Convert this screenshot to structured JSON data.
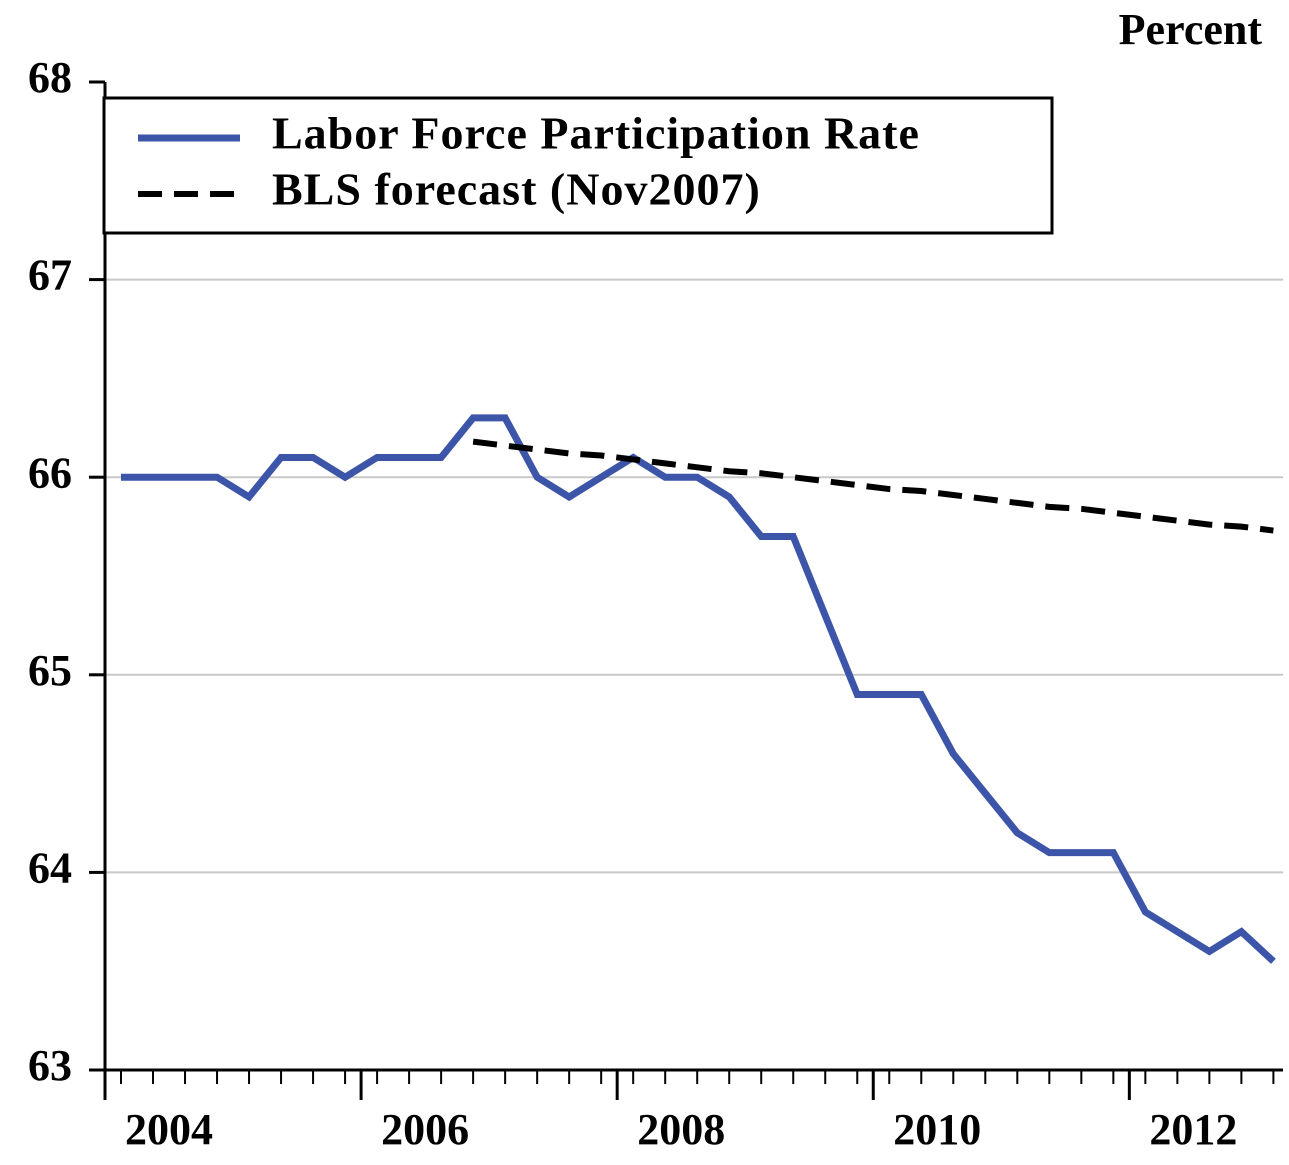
{
  "chart_data": {
    "type": "line",
    "y_axis_label": "Percent",
    "x": [
      2004.125,
      2004.375,
      2004.625,
      2004.875,
      2005.125,
      2005.375,
      2005.625,
      2005.875,
      2006.125,
      2006.375,
      2006.625,
      2006.875,
      2007.125,
      2007.375,
      2007.625,
      2007.875,
      2008.125,
      2008.375,
      2008.625,
      2008.875,
      2009.125,
      2009.375,
      2009.625,
      2009.875,
      2010.125,
      2010.375,
      2010.625,
      2010.875,
      2011.125,
      2011.375,
      2011.625,
      2011.875,
      2012.125,
      2012.375,
      2012.625,
      2012.875,
      2013.125
    ],
    "series": [
      {
        "name": "Labor Force Participation Rate",
        "color": "#3c55a8",
        "dash": false,
        "values": [
          66.0,
          66.0,
          66.0,
          66.0,
          65.9,
          66.1,
          66.1,
          66.0,
          66.1,
          66.1,
          66.1,
          66.3,
          66.3,
          66.0,
          65.9,
          66.0,
          66.1,
          66.0,
          66.0,
          65.9,
          65.7,
          65.7,
          65.3,
          64.9,
          64.9,
          64.9,
          64.6,
          64.4,
          64.2,
          64.1,
          64.1,
          64.1,
          63.8,
          63.7,
          63.6,
          63.7,
          63.55
        ]
      },
      {
        "name": "BLS forecast (Nov2007)",
        "color": "#000000",
        "dash": true,
        "values": [
          null,
          null,
          null,
          null,
          null,
          null,
          null,
          null,
          null,
          null,
          null,
          66.18,
          66.16,
          66.14,
          66.12,
          66.11,
          66.09,
          66.07,
          66.05,
          66.03,
          66.02,
          66.0,
          65.98,
          65.96,
          65.94,
          65.93,
          65.91,
          65.89,
          65.87,
          65.85,
          65.84,
          65.82,
          65.8,
          65.78,
          65.76,
          65.75,
          65.73
        ]
      }
    ],
    "xlim": [
      2004,
      2013.2
    ],
    "xticks": [
      2004,
      2006,
      2008,
      2010,
      2012
    ],
    "ylim": [
      63,
      68
    ],
    "yticks": [
      63,
      64,
      65,
      66,
      67,
      68
    ],
    "grid": true,
    "legend": "upper left"
  }
}
